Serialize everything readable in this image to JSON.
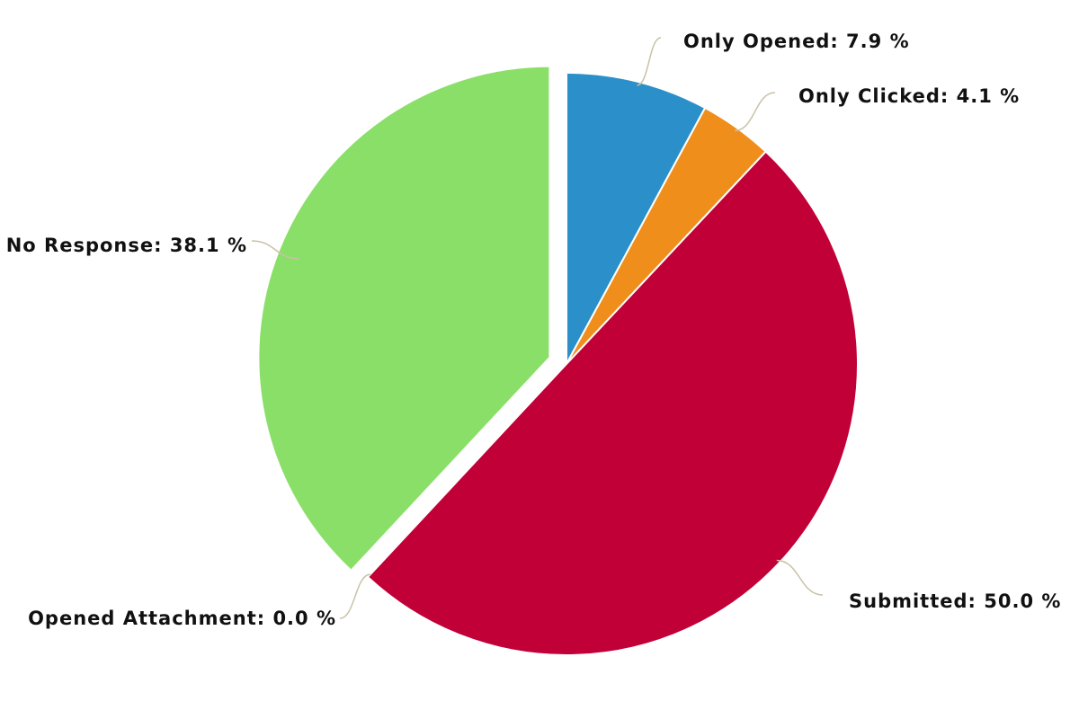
{
  "chart_data": {
    "type": "pie",
    "title": "",
    "legend": "none",
    "slices": [
      {
        "label": "Only Opened",
        "value": 7.9,
        "color": "#2b8fca",
        "value_label": "Only Opened: 7.9 %"
      },
      {
        "label": "Only Clicked",
        "value": 4.1,
        "color": "#ef8e1b",
        "value_label": "Only Clicked: 4.1 %"
      },
      {
        "label": "Submitted",
        "value": 50.0,
        "color": "#c10037",
        "value_label": "Submitted: 50.0 %"
      },
      {
        "label": "Opened Attachment",
        "value": 0.0,
        "color": "#8a8a8a",
        "value_label": "Opened Attachment: 0.0 %"
      },
      {
        "label": "No Response",
        "value": 38.1,
        "color": "#8adf69",
        "value_label": "No Response: 38.1 %",
        "exploded": true
      }
    ]
  }
}
